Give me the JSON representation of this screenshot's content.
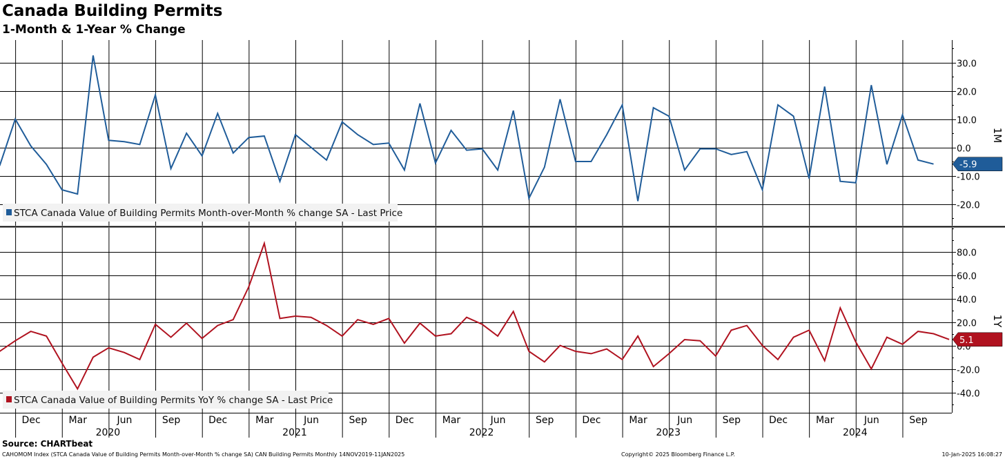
{
  "header": {
    "title": "Canada Building Permits",
    "subtitle": "1-Month & 1-Year % Change"
  },
  "footer": {
    "source": "Source: CHARTbeat",
    "left_note": "CAHOMOM Index (STCA Canada Value of Building Permits Month-over-Month % change SA) CAN Building Permits  Monthly 14NOV2019-11JAN2025",
    "copyright": "Copyright© 2025 Bloomberg Finance L.P.",
    "timestamp": "10-Jan-2025 16:08:27"
  },
  "colors": {
    "mom": "#1f5c99",
    "yoy": "#b0121f",
    "grid": "#000000"
  },
  "chart_data": [
    {
      "type": "line",
      "panel_label": "1M",
      "legend": "STCA Canada Value of Building Permits Month-over-Month % change SA - Last Price",
      "last_value_label": "-5.9",
      "ylim": [
        -28,
        38
      ],
      "y_ticks": [
        30,
        20,
        10,
        0,
        -10,
        -20
      ],
      "y_tick_labels": [
        "30.0",
        "20.0",
        "10.0",
        "0.0",
        "-10.0",
        "-20.0"
      ],
      "grid": true,
      "legend_position": "bottom-left",
      "x_start": "Nov 2019",
      "series": [
        {
          "name": "Month-over-Month % change",
          "values": [
            -6.5,
            10,
            0.5,
            -6,
            -15,
            -16.5,
            32.5,
            2.5,
            2,
            1,
            18.5,
            -7.5,
            5,
            -3,
            12,
            -2,
            3.5,
            4,
            -12,
            4.5,
            0,
            -4.5,
            9,
            4.5,
            1,
            1.5,
            -8,
            15.5,
            -5.5,
            6,
            -1,
            -0.5,
            -8,
            13,
            -18,
            -7,
            17,
            -5,
            -5,
            4.5,
            15,
            -19,
            14,
            11,
            -8,
            -0.5,
            -0.5,
            -2.5,
            -1.5,
            -15,
            15,
            11,
            -11,
            21.5,
            -12,
            -12.5,
            22,
            -6,
            11.5,
            -4.5,
            -5.9
          ]
        }
      ]
    },
    {
      "type": "line",
      "panel_label": "1Y",
      "legend": "STCA Canada Value of Building Permits YoY % change SA - Last Price",
      "last_value_label": "5.1",
      "ylim": [
        -60,
        100
      ],
      "y_ticks": [
        80,
        60,
        40,
        20,
        0,
        -20,
        -40
      ],
      "y_tick_labels": [
        "80.0",
        "60.0",
        "40.0",
        "20.0",
        "0.0",
        "-20.0",
        "-40.0"
      ],
      "grid": true,
      "legend_position": "bottom-left",
      "x_start": "Nov 2019",
      "series": [
        {
          "name": "YoY % change",
          "values": [
            -5,
            4,
            12,
            8,
            -15,
            -37,
            -10,
            -2,
            -6,
            -12,
            18,
            7,
            19,
            6,
            17,
            22,
            50,
            87,
            23,
            25,
            24,
            17,
            8,
            22,
            18,
            23,
            2,
            19,
            8,
            10,
            24,
            18,
            8,
            29,
            -5,
            -14,
            0,
            -5,
            -7,
            -3,
            -12,
            8,
            -18,
            -7,
            5,
            4,
            -9,
            13,
            17,
            0,
            -12,
            7,
            13,
            -13,
            32,
            3,
            -20,
            7,
            1,
            12,
            10,
            5.1
          ]
        }
      ]
    },
    {
      "type": "axis",
      "month_labels": [
        "Dec",
        "Mar",
        "Jun",
        "Sep",
        "Dec",
        "Mar",
        "Jun",
        "Sep",
        "Dec",
        "Mar",
        "Jun",
        "Sep",
        "Dec",
        "Mar",
        "Jun",
        "Sep",
        "Dec",
        "Mar",
        "Jun",
        "Sep"
      ],
      "year_labels": [
        "2020",
        "2021",
        "2022",
        "2023",
        "2024"
      ]
    }
  ]
}
